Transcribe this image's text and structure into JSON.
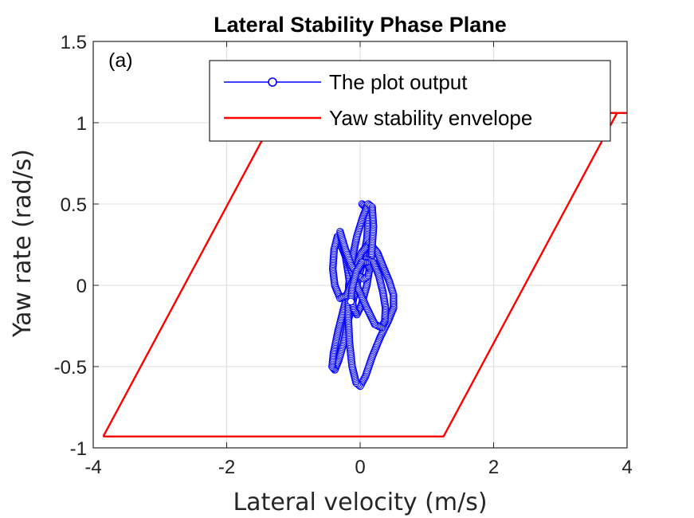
{
  "chart_data": {
    "type": "line",
    "title": "Lateral Stability Phase Plane",
    "panel_label": "(a)",
    "xlabel": "Lateral velocity (m/s)",
    "ylabel": "Yaw rate (rad/s)",
    "xlim": [
      -4,
      4
    ],
    "ylim": [
      -1,
      1.5
    ],
    "xticks": [
      -4,
      -2,
      0,
      2,
      4
    ],
    "xtick_labels": [
      "-4",
      "-2",
      "0",
      "2",
      "4"
    ],
    "yticks": [
      -1,
      -0.5,
      0,
      0.5,
      1,
      1.5
    ],
    "ytick_labels": [
      "-1",
      "-0.5",
      "0",
      "0.5",
      "1",
      "1.5"
    ],
    "grid": true,
    "legend_position": "top-right",
    "series": [
      {
        "name": "The plot output",
        "color": "#0000ff",
        "marker": "circle",
        "x": [
          0.03,
          0.08,
          0.12,
          0.1,
          0.02,
          -0.08,
          -0.18,
          -0.25,
          -0.32,
          -0.38,
          -0.42,
          -0.4,
          -0.33,
          -0.22,
          -0.1,
          0.02,
          0.14,
          0.26,
          0.36,
          0.44,
          0.5,
          0.5,
          0.42,
          0.3,
          0.18,
          0.08,
          0.0,
          -0.06,
          -0.12,
          -0.16,
          -0.18,
          -0.17,
          -0.12,
          -0.05,
          0.04,
          0.12,
          0.18,
          0.2,
          0.17,
          0.1,
          0.02,
          -0.05,
          -0.1,
          -0.14,
          -0.18,
          -0.22,
          -0.28,
          -0.34,
          -0.39,
          -0.41,
          -0.38,
          -0.3,
          -0.2,
          -0.1,
          0.0,
          0.1,
          0.2,
          0.28,
          0.34,
          0.38,
          0.37,
          0.32,
          0.22,
          0.1,
          -0.03,
          -0.14,
          -0.22,
          -0.28,
          -0.3,
          -0.28,
          -0.22,
          -0.13,
          -0.03,
          0.06,
          0.12,
          0.14,
          0.1,
          0.02,
          -0.06,
          -0.12,
          -0.14
        ],
        "y": [
          0.5,
          0.48,
          0.4,
          0.28,
          0.12,
          -0.05,
          -0.22,
          -0.36,
          -0.46,
          -0.52,
          -0.5,
          -0.42,
          -0.28,
          -0.1,
          0.08,
          0.2,
          0.26,
          0.2,
          0.1,
          0.02,
          -0.06,
          -0.14,
          -0.22,
          -0.32,
          -0.44,
          -0.56,
          -0.62,
          -0.6,
          -0.5,
          -0.35,
          -0.18,
          0.0,
          0.16,
          0.3,
          0.42,
          0.5,
          0.48,
          0.36,
          0.18,
          0.0,
          -0.12,
          -0.18,
          -0.14,
          -0.04,
          0.08,
          0.18,
          0.24,
          0.3,
          0.22,
          0.1,
          0.0,
          -0.08,
          -0.06,
          0.04,
          0.12,
          0.16,
          0.14,
          0.06,
          -0.04,
          -0.14,
          -0.22,
          -0.26,
          -0.24,
          -0.14,
          -0.02,
          0.1,
          0.2,
          0.28,
          0.33,
          0.3,
          0.22,
          0.12,
          0.06,
          0.04,
          0.06,
          0.1,
          0.14,
          0.14,
          0.08,
          -0.02,
          -0.1
        ]
      },
      {
        "name": "Yaw stability envelope",
        "color": "#ff0000",
        "marker": "none",
        "x": [
          -3.85,
          1.25,
          3.85,
          4.0,
          -1.25,
          -3.85
        ],
        "y": [
          -0.93,
          -0.93,
          1.06,
          1.06,
          1.06,
          -0.93
        ]
      }
    ]
  }
}
